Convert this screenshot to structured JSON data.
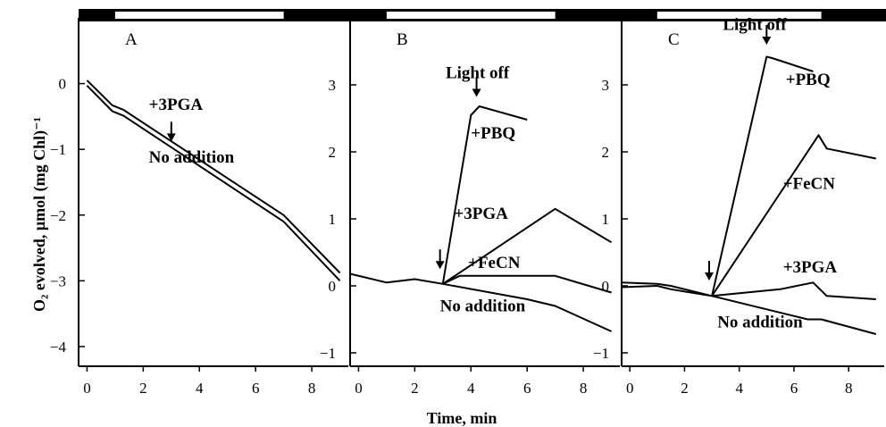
{
  "figure": {
    "xlabel": "Time, min",
    "ylabel": "O₂ evolved, μmol (mg Chl)⁻¹",
    "colors": {
      "ink": "#000000",
      "background": "#ffffff",
      "light_bar": "#ffffff"
    }
  },
  "chart_data": [
    {
      "type": "line",
      "panel": "A",
      "xlim": [
        -0.3,
        9.3
      ],
      "ylim": [
        -4.3,
        1.0
      ],
      "xticks": [
        0,
        2,
        4,
        6,
        8
      ],
      "yticks": [
        0,
        -1,
        -2,
        -3,
        -4
      ],
      "ytick_side": "left",
      "light_period": [
        1,
        7
      ],
      "series": [
        {
          "x": [
            0,
            0.9,
            1.3,
            7.0,
            9.0
          ],
          "y": [
            0.05,
            -0.33,
            -0.4,
            -2.0,
            -2.88
          ]
        },
        {
          "x": [
            0,
            0.9,
            1.3,
            7.0,
            9.0
          ],
          "y": [
            -0.03,
            -0.42,
            -0.49,
            -2.1,
            -3.0
          ]
        }
      ],
      "annotations": [
        {
          "text": "+3PGA",
          "x": 2.2,
          "y": -0.4
        },
        {
          "text": "No addition",
          "x": 2.2,
          "y": -1.2
        }
      ],
      "arrows": [
        {
          "x": 3.0,
          "y": -0.88
        }
      ]
    },
    {
      "type": "line",
      "panel": "B",
      "xlim": [
        -0.3,
        9.3
      ],
      "ylim": [
        -1.2,
        4.0
      ],
      "xticks": [
        0,
        2,
        4,
        6,
        8
      ],
      "yticks": [
        3,
        2,
        1,
        0,
        -1
      ],
      "ytick_side": "right",
      "light_period": [
        1,
        7
      ],
      "series": [
        {
          "name": "+PBQ",
          "x": [
            3,
            4,
            4.3,
            6
          ],
          "y": [
            0.03,
            2.55,
            2.68,
            2.48
          ]
        },
        {
          "name": "+3PGA",
          "x": [
            3,
            7,
            9
          ],
          "y": [
            0.03,
            1.15,
            0.65
          ]
        },
        {
          "name": "+FeCN",
          "x": [
            3,
            3.6,
            7,
            9
          ],
          "y": [
            0.03,
            0.15,
            0.15,
            -0.1
          ]
        },
        {
          "name": "No addition",
          "x": [
            -0.3,
            1,
            2,
            3,
            6,
            7,
            9
          ],
          "y": [
            0.18,
            0.05,
            0.1,
            0.03,
            -0.2,
            -0.3,
            -0.68
          ]
        }
      ],
      "annotations": [
        {
          "text": "Light off",
          "x": 3.1,
          "y": 3.1
        },
        {
          "text": "+PBQ",
          "x": 4.0,
          "y": 2.2
        },
        {
          "text": "+3PGA",
          "x": 3.4,
          "y": 1.0
        },
        {
          "text": "+FeCN",
          "x": 3.9,
          "y": 0.27
        },
        {
          "text": "No addition",
          "x": 2.9,
          "y": -0.38
        }
      ],
      "arrows": [
        {
          "x": 4.2,
          "y": 2.82
        },
        {
          "x": 2.9,
          "y": 0.25
        }
      ]
    },
    {
      "type": "line",
      "panel": "C",
      "xlim": [
        -0.3,
        9.3
      ],
      "ylim": [
        -1.2,
        4.0
      ],
      "xticks": [
        0,
        2,
        4,
        6,
        8
      ],
      "yticks": [
        3,
        2,
        1,
        0,
        -1
      ],
      "ytick_side": "left",
      "light_period": [
        1,
        7
      ],
      "series": [
        {
          "name": "+PBQ",
          "x": [
            3,
            5,
            5.2,
            6.7
          ],
          "y": [
            -0.15,
            3.42,
            3.4,
            3.2
          ]
        },
        {
          "name": "+FeCN",
          "x": [
            3,
            6.9,
            7.2,
            9
          ],
          "y": [
            -0.15,
            2.25,
            2.05,
            1.9
          ]
        },
        {
          "name": "+3PGA",
          "x": [
            3,
            5.5,
            6.7,
            7.2,
            9
          ],
          "y": [
            -0.15,
            -0.05,
            0.05,
            -0.15,
            -0.2
          ]
        },
        {
          "name": "No addition",
          "x": [
            -0.3,
            1,
            1.5,
            3,
            6.5,
            7,
            9
          ],
          "y": [
            -0.02,
            0.0,
            -0.05,
            -0.15,
            -0.5,
            -0.5,
            -0.72
          ]
        },
        {
          "x": [
            -0.3,
            1,
            1.5,
            3
          ],
          "y": [
            0.05,
            0.03,
            0.0,
            -0.15
          ]
        }
      ],
      "annotations": [
        {
          "text": "Light off",
          "x": 3.4,
          "y": 3.82
        },
        {
          "text": "+PBQ",
          "x": 5.7,
          "y": 3.0
        },
        {
          "text": "+FeCN",
          "x": 5.6,
          "y": 1.45
        },
        {
          "text": "+3PGA",
          "x": 5.6,
          "y": 0.2
        },
        {
          "text": "No addition",
          "x": 3.2,
          "y": -0.62
        }
      ],
      "arrows": [
        {
          "x": 5.0,
          "y": 3.6
        },
        {
          "x": 2.9,
          "y": 0.08
        }
      ]
    }
  ]
}
